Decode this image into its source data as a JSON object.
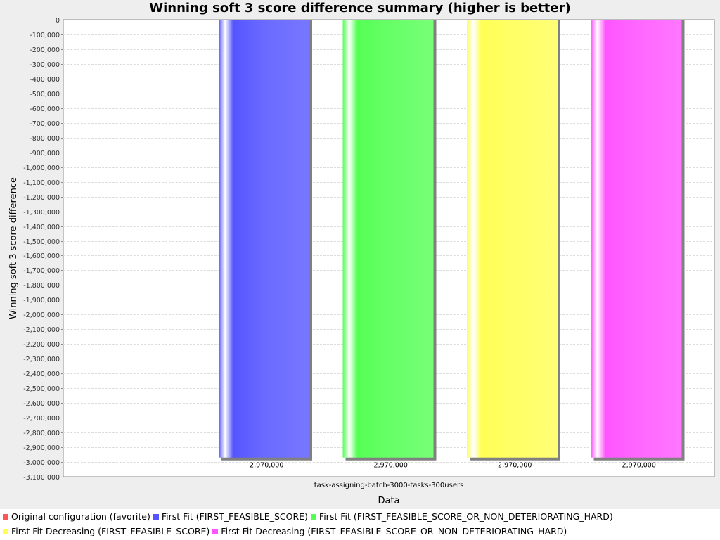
{
  "chart_data": {
    "type": "bar",
    "title": "Winning soft 3 score difference summary (higher is better)",
    "xlabel": "Data",
    "ylabel": "Winning soft 3 score difference",
    "categories": [
      "task-assigning-batch-3000-tasks-300users"
    ],
    "ylim": [
      -3100000,
      0
    ],
    "ytick_step": 100000,
    "grid": true,
    "legend_position": "bottom",
    "series": [
      {
        "name": "Original configuration (favorite)",
        "color": "#ff5555",
        "values": [
          null
        ],
        "value_labels": [
          ""
        ]
      },
      {
        "name": "First Fit (FIRST_FEASIBLE_SCORE)",
        "color": "#5555ff",
        "values": [
          -2970000
        ],
        "value_labels": [
          "-2,970,000"
        ]
      },
      {
        "name": "First Fit (FIRST_FEASIBLE_SCORE_OR_NON_DETERIORATING_HARD)",
        "color": "#55ff55",
        "values": [
          -2970000
        ],
        "value_labels": [
          "-2,970,000"
        ]
      },
      {
        "name": "First Fit Decreasing (FIRST_FEASIBLE_SCORE)",
        "color": "#ffff55",
        "values": [
          -2970000
        ],
        "value_labels": [
          "-2,970,000"
        ]
      },
      {
        "name": "First Fit Decreasing (FIRST_FEASIBLE_SCORE_OR_NON_DETERIORATING_HARD)",
        "color": "#ff55ff",
        "values": [
          -2970000
        ],
        "value_labels": [
          "-2,970,000"
        ]
      }
    ]
  }
}
